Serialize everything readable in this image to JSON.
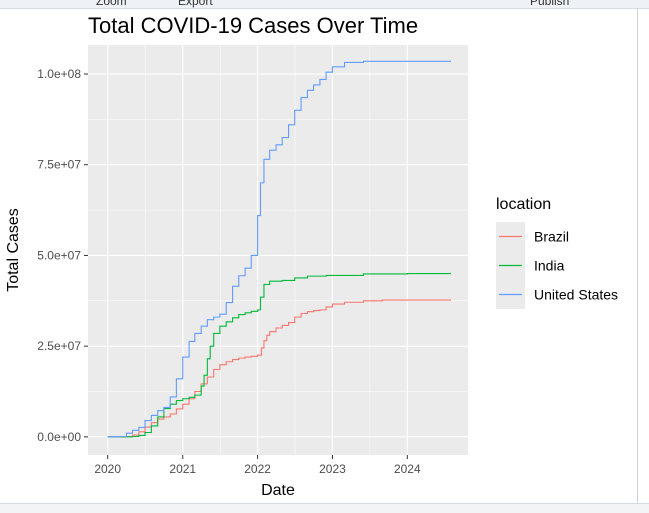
{
  "toolbar": {
    "zoom_label": "Zoom",
    "export_label": "Export",
    "publish_label": "Publish"
  },
  "chart_data": {
    "type": "line",
    "title": "Total COVID-19 Cases Over Time",
    "xlabel": "Date",
    "ylabel": "Total Cases",
    "x_ticks": [
      "2020",
      "2021",
      "2022",
      "2023",
      "2024"
    ],
    "x_tick_values": [
      "2020-01-01",
      "2021-01-01",
      "2022-01-01",
      "2023-01-01",
      "2024-01-01"
    ],
    "y_ticks": [
      "0.0e+00",
      "2.5e+07",
      "5.0e+07",
      "7.5e+07",
      "1.0e+08"
    ],
    "y_tick_values": [
      0,
      25000000,
      50000000,
      75000000,
      100000000
    ],
    "xlim": [
      "2019-09-27",
      "2024-10-23"
    ],
    "ylim": [
      -5000000,
      108000000
    ],
    "grid": true,
    "legend": {
      "title": "location",
      "position": "right"
    },
    "series": [
      {
        "name": "Brazil",
        "color": "#F8766D",
        "points": [
          [
            "2020-01-01",
            0
          ],
          [
            "2020-03-01",
            0
          ],
          [
            "2020-04-01",
            100000
          ],
          [
            "2020-05-01",
            500000
          ],
          [
            "2020-06-01",
            1400000
          ],
          [
            "2020-07-01",
            2700000
          ],
          [
            "2020-08-01",
            3900000
          ],
          [
            "2020-09-01",
            4900000
          ],
          [
            "2020-10-01",
            5500000
          ],
          [
            "2020-11-01",
            6300000
          ],
          [
            "2020-12-01",
            7700000
          ],
          [
            "2021-01-01",
            9000000
          ],
          [
            "2021-02-01",
            10500000
          ],
          [
            "2021-03-01",
            12500000
          ],
          [
            "2021-04-01",
            14600000
          ],
          [
            "2021-05-01",
            16500000
          ],
          [
            "2021-06-01",
            18600000
          ],
          [
            "2021-07-01",
            19900000
          ],
          [
            "2021-08-01",
            20700000
          ],
          [
            "2021-09-01",
            21300000
          ],
          [
            "2021-10-01",
            21700000
          ],
          [
            "2021-11-01",
            22000000
          ],
          [
            "2021-12-01",
            22200000
          ],
          [
            "2022-01-01",
            22500000
          ],
          [
            "2022-01-20",
            24500000
          ],
          [
            "2022-02-01",
            26500000
          ],
          [
            "2022-02-15",
            28000000
          ],
          [
            "2022-03-01",
            29000000
          ],
          [
            "2022-04-01",
            30000000
          ],
          [
            "2022-05-01",
            30700000
          ],
          [
            "2022-06-01",
            31500000
          ],
          [
            "2022-07-01",
            33000000
          ],
          [
            "2022-08-01",
            34000000
          ],
          [
            "2022-09-01",
            34500000
          ],
          [
            "2022-10-01",
            34800000
          ],
          [
            "2022-11-01",
            35000000
          ],
          [
            "2022-12-01",
            35800000
          ],
          [
            "2023-01-01",
            36600000
          ],
          [
            "2023-03-01",
            37100000
          ],
          [
            "2023-06-01",
            37500000
          ],
          [
            "2023-09-01",
            37700000
          ],
          [
            "2024-01-01",
            37700000
          ],
          [
            "2024-08-01",
            37700000
          ]
        ]
      },
      {
        "name": "India",
        "color": "#00BA38",
        "points": [
          [
            "2020-01-01",
            0
          ],
          [
            "2020-04-01",
            0
          ],
          [
            "2020-05-01",
            100000
          ],
          [
            "2020-06-01",
            400000
          ],
          [
            "2020-07-01",
            1200000
          ],
          [
            "2020-08-01",
            3000000
          ],
          [
            "2020-09-01",
            5500000
          ],
          [
            "2020-10-01",
            7800000
          ],
          [
            "2020-11-01",
            9000000
          ],
          [
            "2020-12-01",
            10000000
          ],
          [
            "2021-01-01",
            10500000
          ],
          [
            "2021-02-01",
            10900000
          ],
          [
            "2021-03-01",
            11500000
          ],
          [
            "2021-04-01",
            14000000
          ],
          [
            "2021-04-15",
            17000000
          ],
          [
            "2021-05-01",
            21500000
          ],
          [
            "2021-05-15",
            25000000
          ],
          [
            "2021-06-01",
            28500000
          ],
          [
            "2021-07-01",
            30500000
          ],
          [
            "2021-08-01",
            31700000
          ],
          [
            "2021-09-01",
            32800000
          ],
          [
            "2021-10-01",
            33700000
          ],
          [
            "2021-11-01",
            34200000
          ],
          [
            "2021-12-01",
            34600000
          ],
          [
            "2022-01-01",
            35000000
          ],
          [
            "2022-01-15",
            38500000
          ],
          [
            "2022-02-01",
            42000000
          ],
          [
            "2022-03-01",
            42900000
          ],
          [
            "2022-05-01",
            43100000
          ],
          [
            "2022-07-01",
            43800000
          ],
          [
            "2022-09-01",
            44300000
          ],
          [
            "2022-12-01",
            44500000
          ],
          [
            "2023-06-01",
            44900000
          ],
          [
            "2024-01-01",
            45000000
          ],
          [
            "2024-08-01",
            45000000
          ]
        ]
      },
      {
        "name": "United States",
        "color": "#619CFF",
        "points": [
          [
            "2020-01-01",
            0
          ],
          [
            "2020-03-01",
            100000
          ],
          [
            "2020-04-01",
            1000000
          ],
          [
            "2020-05-01",
            1800000
          ],
          [
            "2020-06-01",
            2600000
          ],
          [
            "2020-07-01",
            4500000
          ],
          [
            "2020-08-01",
            5900000
          ],
          [
            "2020-09-01",
            7200000
          ],
          [
            "2020-10-01",
            8100000
          ],
          [
            "2020-11-01",
            11000000
          ],
          [
            "2020-12-01",
            16000000
          ],
          [
            "2021-01-01",
            22000000
          ],
          [
            "2021-02-01",
            26300000
          ],
          [
            "2021-03-01",
            28500000
          ],
          [
            "2021-04-01",
            30500000
          ],
          [
            "2021-05-01",
            32300000
          ],
          [
            "2021-06-01",
            33000000
          ],
          [
            "2021-07-01",
            33800000
          ],
          [
            "2021-08-01",
            37000000
          ],
          [
            "2021-09-01",
            41500000
          ],
          [
            "2021-10-01",
            44400000
          ],
          [
            "2021-11-01",
            46500000
          ],
          [
            "2021-12-01",
            50000000
          ],
          [
            "2022-01-01",
            61000000
          ],
          [
            "2022-01-15",
            70000000
          ],
          [
            "2022-02-01",
            76500000
          ],
          [
            "2022-03-01",
            79000000
          ],
          [
            "2022-04-01",
            80500000
          ],
          [
            "2022-05-01",
            82500000
          ],
          [
            "2022-06-01",
            86000000
          ],
          [
            "2022-07-01",
            90000000
          ],
          [
            "2022-08-01",
            93500000
          ],
          [
            "2022-09-01",
            95500000
          ],
          [
            "2022-10-01",
            97000000
          ],
          [
            "2022-11-01",
            98500000
          ],
          [
            "2022-12-01",
            100500000
          ],
          [
            "2023-01-01",
            102000000
          ],
          [
            "2023-03-01",
            103200000
          ],
          [
            "2023-06-01",
            103500000
          ],
          [
            "2024-01-01",
            103500000
          ],
          [
            "2024-08-01",
            103500000
          ]
        ]
      }
    ]
  }
}
